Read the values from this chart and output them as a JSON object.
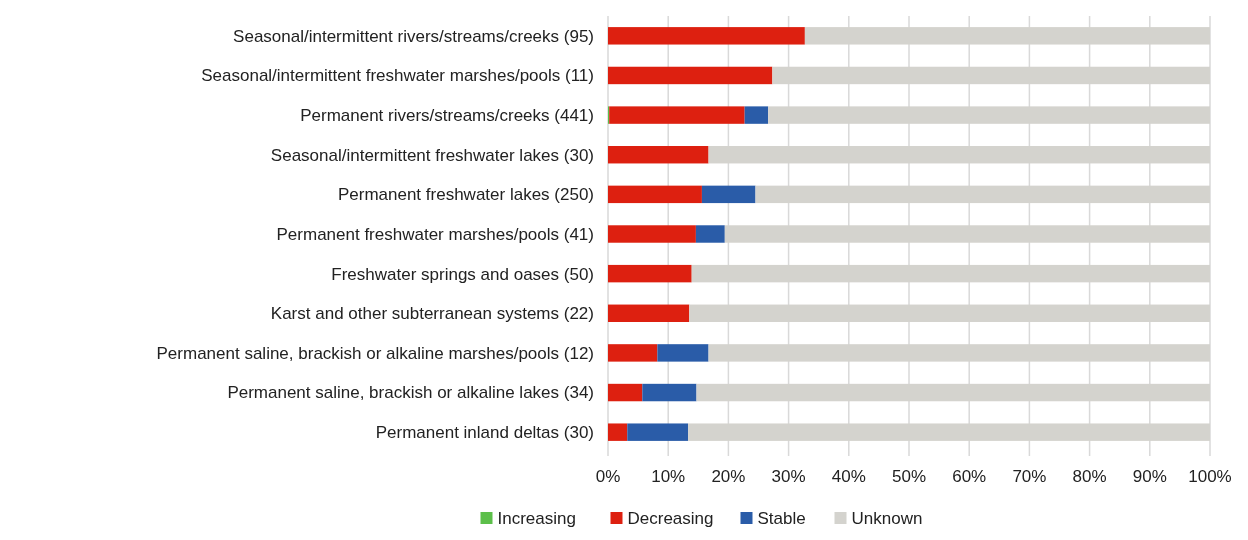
{
  "chart_data": {
    "type": "bar",
    "orientation": "horizontal",
    "stacked": true,
    "categories": [
      "Seasonal/intermittent rivers/streams/creeks (95)",
      "Seasonal/intermittent freshwater marshes/pools (11)",
      "Permanent rivers/streams/creeks (441)",
      "Seasonal/intermittent freshwater lakes (30)",
      "Permanent freshwater lakes (250)",
      "Permanent freshwater marshes/pools (41)",
      "Freshwater springs and oases (50)",
      "Karst and other subterranean systems (22)",
      "Permanent saline, brackish or alkaline marshes/pools (12)",
      "Permanent saline, brackish or alkaline lakes (34)",
      "Permanent inland deltas (30)"
    ],
    "series": [
      {
        "name": "Increasing",
        "color": "#5cbf4a",
        "values": [
          0,
          0,
          0.2,
          0,
          0,
          0,
          0,
          0,
          0,
          0,
          0
        ]
      },
      {
        "name": "Decreasing",
        "color": "#dd2010",
        "values": [
          32.7,
          27.3,
          22.5,
          16.7,
          15.6,
          14.6,
          13.9,
          13.5,
          8.2,
          5.7,
          3.2
        ]
      },
      {
        "name": "Stable",
        "color": "#2a5ca8",
        "values": [
          0,
          0,
          3.9,
          0,
          8.9,
          4.8,
          0,
          0,
          8.5,
          9.0,
          10.1
        ]
      },
      {
        "name": "Unknown",
        "color": "#d4d3ce",
        "values": [
          67.3,
          72.7,
          73.4,
          83.3,
          75.5,
          80.6,
          86.1,
          86.5,
          83.3,
          85.3,
          86.7
        ]
      }
    ],
    "xlim": [
      0,
      100
    ],
    "xticks": [
      {
        "value": 0,
        "label": "0%"
      },
      {
        "value": 10,
        "label": "10%"
      },
      {
        "value": 20,
        "label": "20%"
      },
      {
        "value": 30,
        "label": "30%"
      },
      {
        "value": 40,
        "label": "40%"
      },
      {
        "value": 50,
        "label": "50%"
      },
      {
        "value": 60,
        "label": "60%"
      },
      {
        "value": 70,
        "label": "70%"
      },
      {
        "value": 80,
        "label": "80%"
      },
      {
        "value": 90,
        "label": "90%"
      },
      {
        "value": 100,
        "label": "100%"
      }
    ],
    "grid": "x",
    "legend": "bottom"
  }
}
